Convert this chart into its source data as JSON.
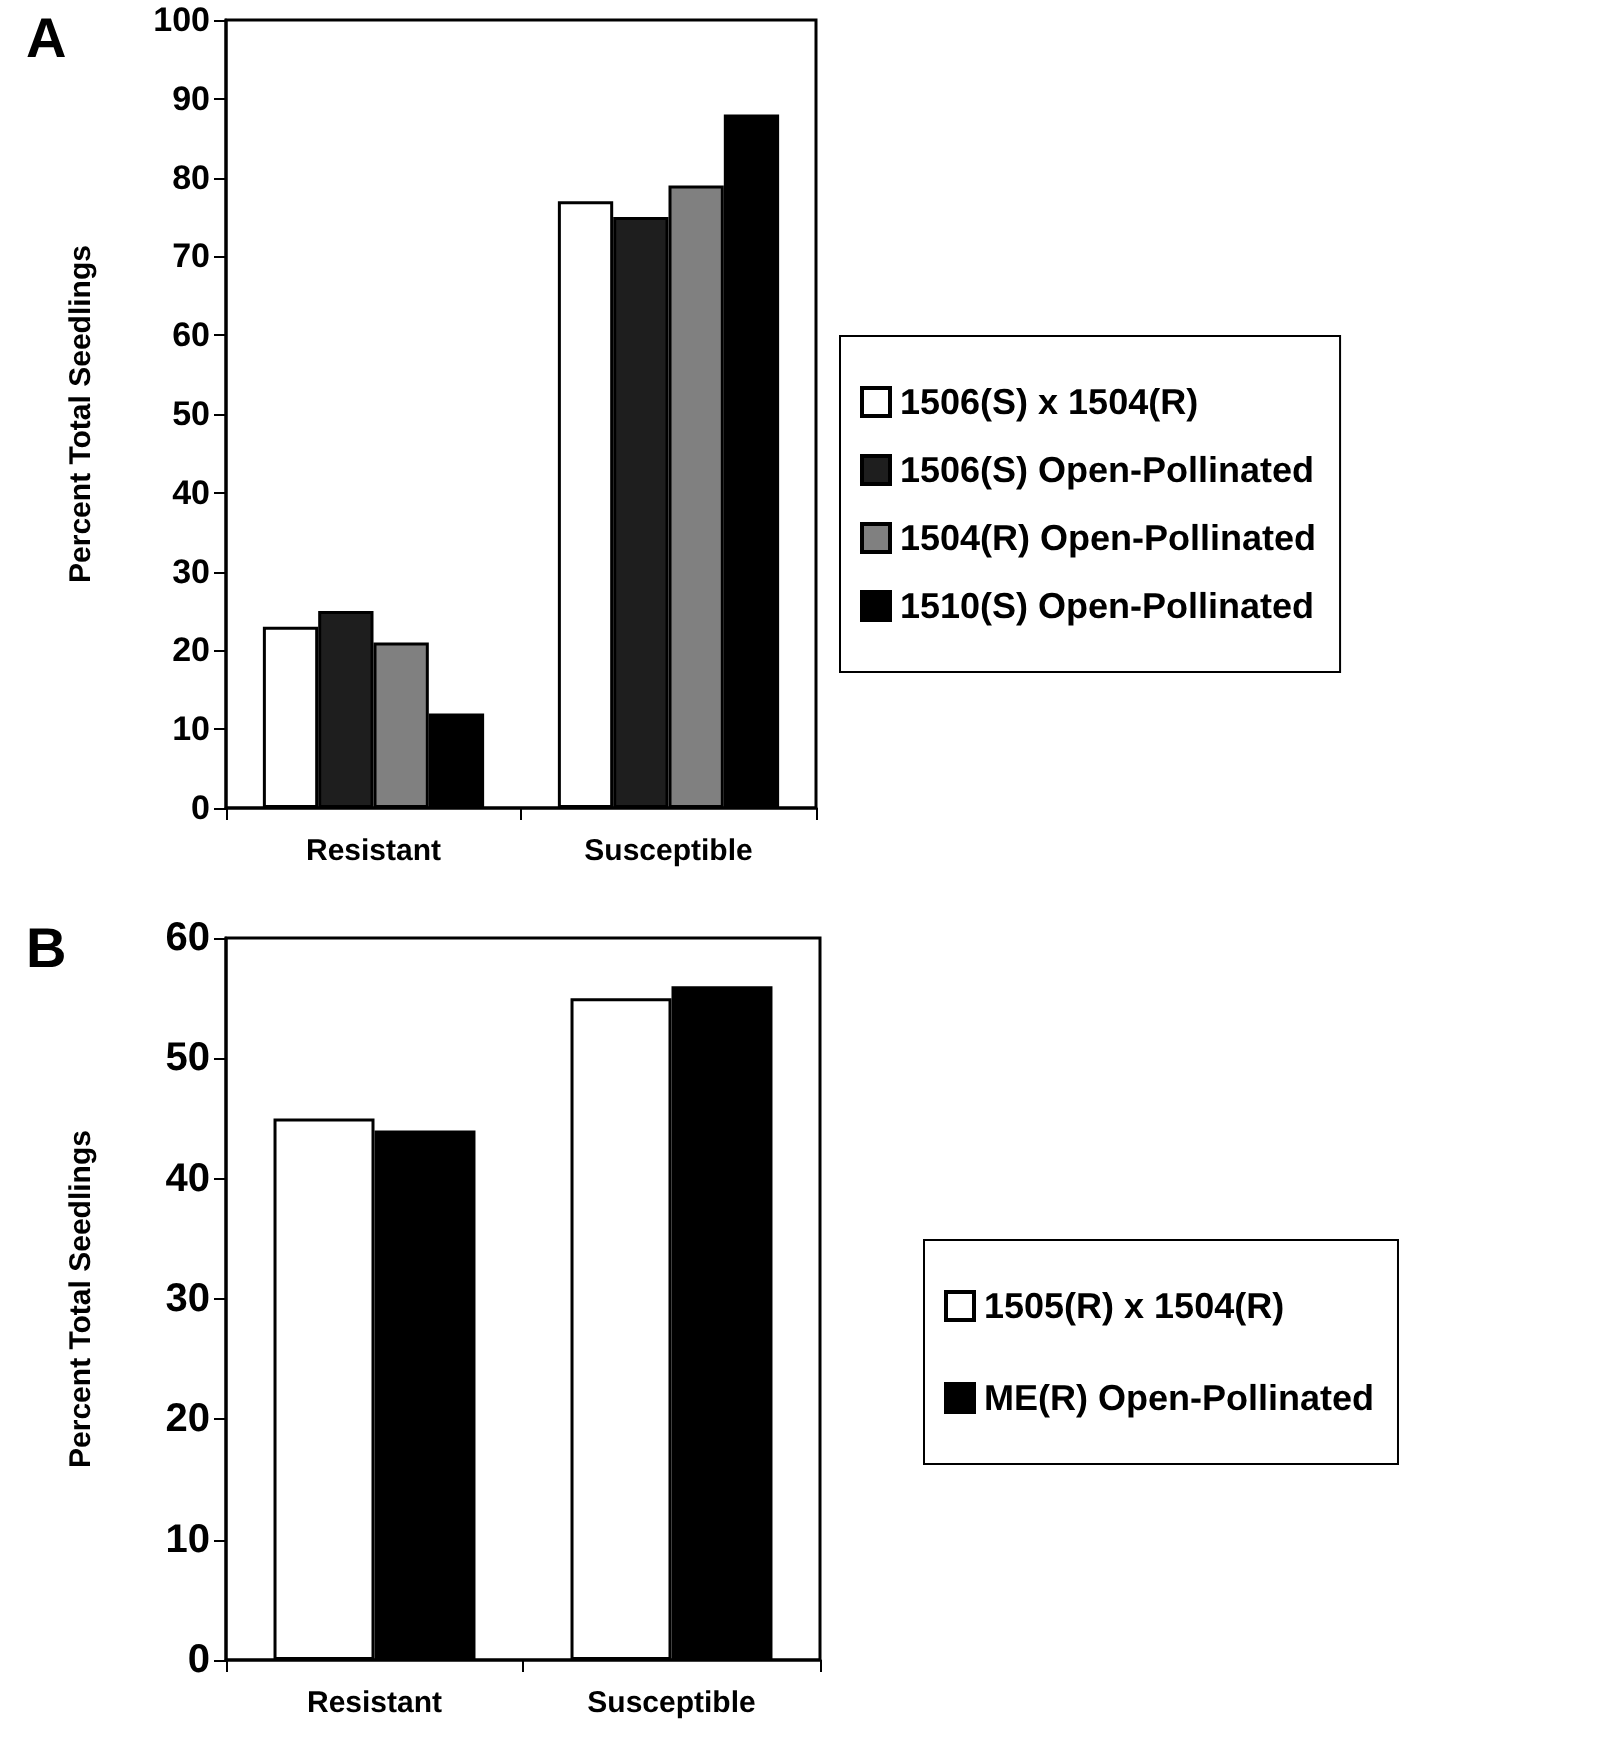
{
  "chart_data": [
    {
      "type": "bar",
      "title": "A",
      "ylabel": "Percent Total Seedlings",
      "categories": [
        "Resistant",
        "Susceptible"
      ],
      "series": [
        {
          "name": "1506(S) x 1504(R)",
          "color": "#ffffff",
          "values": [
            23,
            77
          ]
        },
        {
          "name": "1506(S) Open-Pollinated",
          "color": "#1e1e1e",
          "values": [
            25,
            75
          ]
        },
        {
          "name": "1504(R) Open-Pollinated",
          "color": "#808080",
          "values": [
            21,
            79
          ]
        },
        {
          "name": "1510(S) Open-Pollinated",
          "color": "#000000",
          "values": [
            12,
            88
          ]
        }
      ],
      "ylim": [
        0,
        100
      ],
      "yticks": [
        0,
        10,
        20,
        30,
        40,
        50,
        60,
        70,
        80,
        90,
        100
      ],
      "grid": false,
      "legend": "right"
    },
    {
      "type": "bar",
      "title": "B",
      "ylabel": "Percent Total Seedlings",
      "categories": [
        "Resistant",
        "Susceptible"
      ],
      "series": [
        {
          "name": "1505(R) x 1504(R)",
          "color": "#ffffff",
          "values": [
            45,
            55
          ]
        },
        {
          "name": "ME(R) Open-Pollinated",
          "color": "#000000",
          "values": [
            44,
            56
          ]
        }
      ],
      "ylim": [
        0,
        60
      ],
      "yticks": [
        0,
        10,
        20,
        30,
        40,
        50,
        60
      ],
      "grid": false,
      "legend": "right"
    }
  ]
}
